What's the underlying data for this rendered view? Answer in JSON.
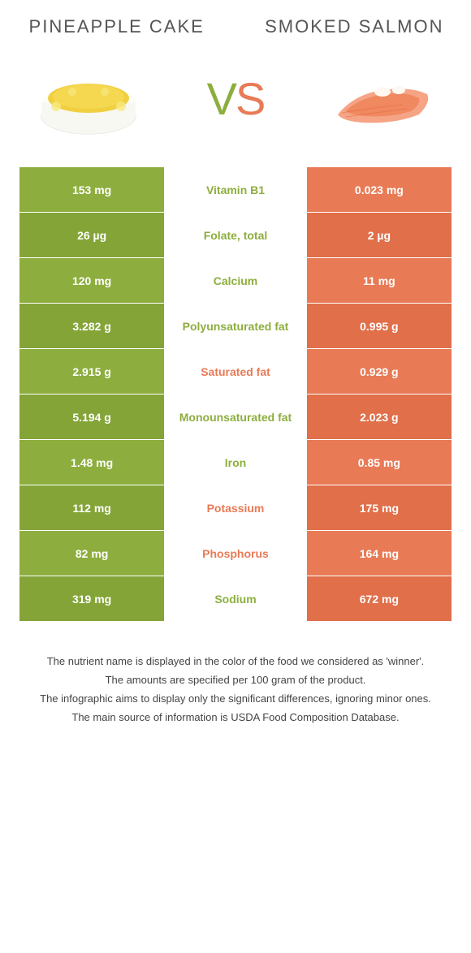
{
  "header": {
    "left_title": "PINEAPPLE CAKE",
    "right_title": "SMOKED SALMON",
    "vs_v": "V",
    "vs_s": "S"
  },
  "colors": {
    "green": "#8dae3e",
    "green_alt": "#84a438",
    "orange": "#e87a56",
    "orange_alt": "#e06f4a",
    "title_text": "#555555",
    "footer_text": "#444444",
    "background": "#ffffff"
  },
  "table": {
    "rows": [
      {
        "left": "153 mg",
        "label": "Vitamin B1",
        "right": "0.023 mg",
        "winner": "left"
      },
      {
        "left": "26 µg",
        "label": "Folate, total",
        "right": "2 µg",
        "winner": "left"
      },
      {
        "left": "120 mg",
        "label": "Calcium",
        "right": "11 mg",
        "winner": "left"
      },
      {
        "left": "3.282 g",
        "label": "Polyunsaturated fat",
        "right": "0.995 g",
        "winner": "left"
      },
      {
        "left": "2.915 g",
        "label": "Saturated fat",
        "right": "0.929 g",
        "winner": "right"
      },
      {
        "left": "5.194 g",
        "label": "Monounsaturated fat",
        "right": "2.023 g",
        "winner": "left"
      },
      {
        "left": "1.48 mg",
        "label": "Iron",
        "right": "0.85 mg",
        "winner": "left"
      },
      {
        "left": "112 mg",
        "label": "Potassium",
        "right": "175 mg",
        "winner": "right"
      },
      {
        "left": "82 mg",
        "label": "Phosphorus",
        "right": "164 mg",
        "winner": "right"
      },
      {
        "left": "319 mg",
        "label": "Sodium",
        "right": "672 mg",
        "winner": "left"
      }
    ]
  },
  "footer": {
    "line1": "The nutrient name is displayed in the color of the food we considered as 'winner'.",
    "line2": "The amounts are specified per 100 gram of the product.",
    "line3": "The infographic aims to display only the significant differences, ignoring minor ones.",
    "line4": "The main source of information is USDA Food Composition Database."
  }
}
